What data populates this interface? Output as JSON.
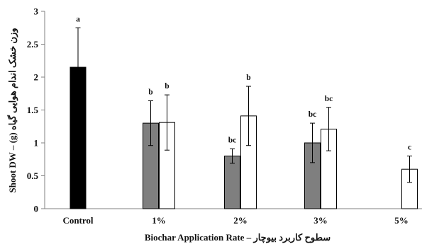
{
  "chart_data": {
    "type": "bar",
    "xlabel": "Biochar Application Rate – سطوح کاربرد بیوچار",
    "ylabel": "Shoot DW – (g) وزن خشک اندام هوایی گیاه",
    "ylim": [
      0,
      3
    ],
    "yticks": [
      "0",
      "0.5",
      "1",
      "1.5",
      "2",
      "2.5",
      "3"
    ],
    "categories": [
      "Control",
      "1%",
      "2%",
      "3%",
      "5%"
    ],
    "series": [
      {
        "color": "#000000",
        "values": [
          2.15,
          null,
          null,
          null,
          null
        ],
        "errors": [
          0.6,
          null,
          null,
          null,
          null
        ],
        "letters": [
          "a",
          "",
          "",
          "",
          ""
        ]
      },
      {
        "color": "#7f7f7f",
        "values": [
          null,
          1.3,
          0.8,
          1.0,
          null
        ],
        "errors": [
          null,
          0.34,
          0.11,
          0.3,
          null
        ],
        "letters": [
          "",
          "b",
          "bc",
          "bc",
          ""
        ]
      },
      {
        "color": "#ffffff",
        "values": [
          null,
          1.31,
          1.41,
          1.21,
          0.6
        ],
        "errors": [
          null,
          0.42,
          0.45,
          0.33,
          0.2
        ],
        "letters": [
          "",
          "b",
          "b",
          "bc",
          "c"
        ]
      }
    ],
    "grid": false,
    "legend": "none"
  }
}
